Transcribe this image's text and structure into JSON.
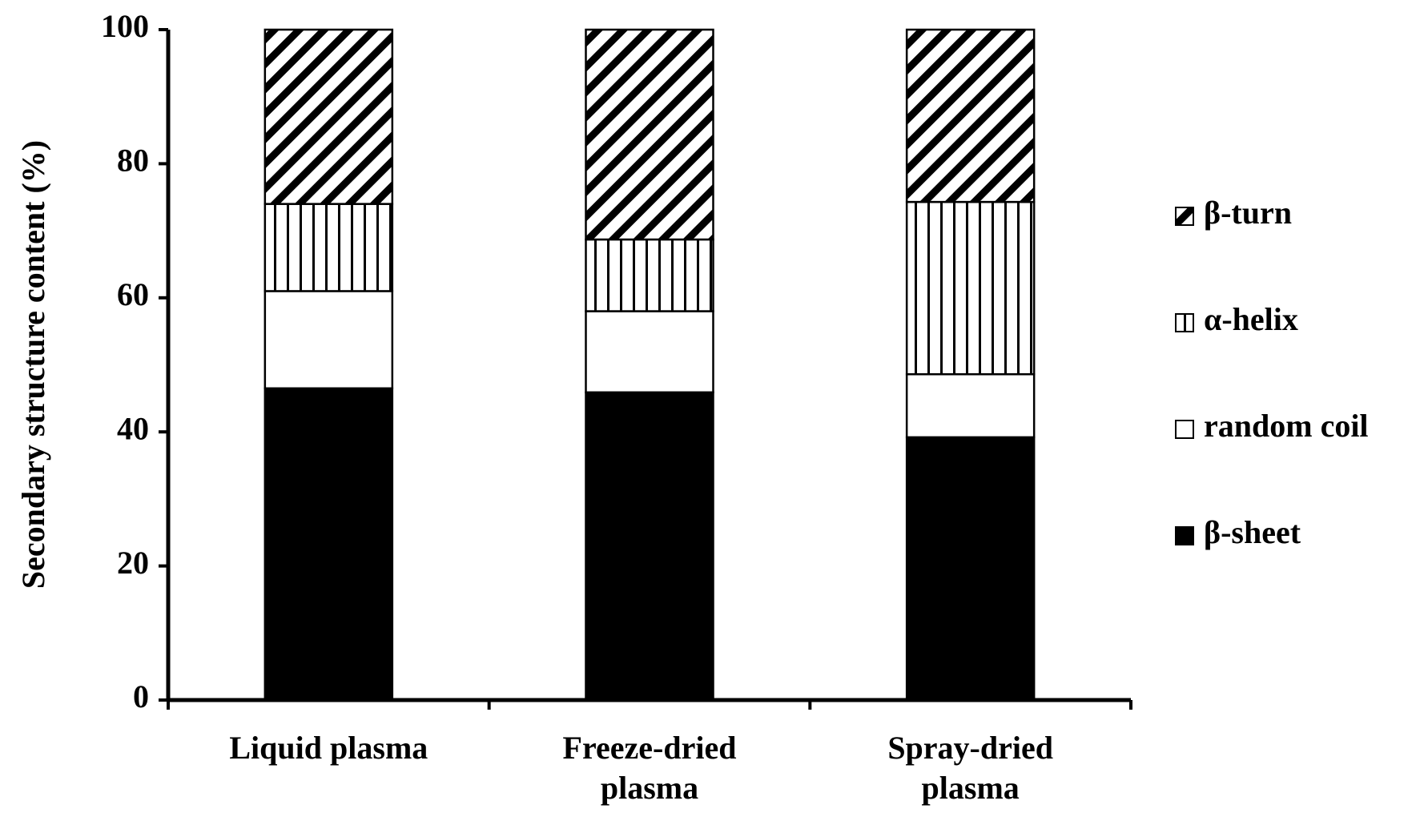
{
  "chart_data": {
    "type": "stacked-bar",
    "y_label": "Secondary structure content (%)",
    "categories": [
      "Liquid plasma",
      "Freeze-dried plasma",
      "Spray-dried plasma"
    ],
    "series": [
      {
        "name": "β-sheet",
        "color": "#000000",
        "pattern": "solid",
        "values": [
          46.5,
          45.9,
          39.2
        ]
      },
      {
        "name": "random coil",
        "color": "#ffffff",
        "pattern": "solid",
        "values": [
          14.5,
          12.1,
          9.4
        ]
      },
      {
        "name": "α-helix",
        "color": "#000000",
        "pattern": "vertical",
        "values": [
          13.0,
          10.7,
          25.7
        ]
      },
      {
        "name": "β-turn",
        "color": "#000000",
        "pattern": "diagonal",
        "values": [
          26.0,
          31.3,
          25.7
        ]
      }
    ],
    "ylim": [
      0,
      100
    ],
    "yticks": [
      0,
      20,
      40,
      60,
      80,
      100
    ],
    "grid": false,
    "legend": "right"
  }
}
